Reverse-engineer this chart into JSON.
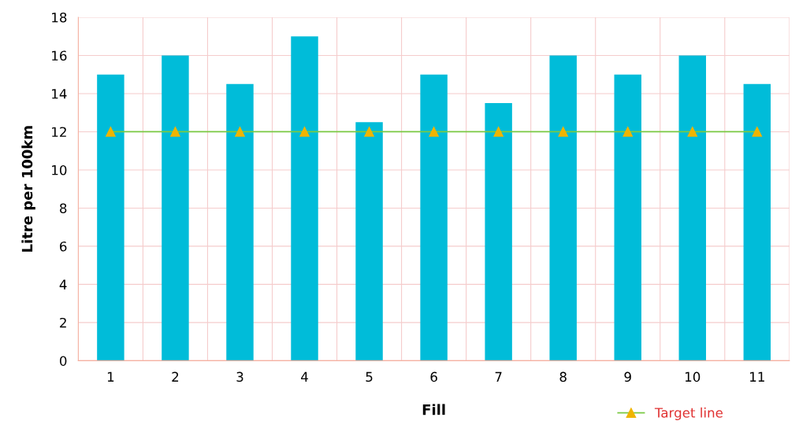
{
  "chart_data": {
    "type": "bar",
    "xlabel": "Fill",
    "ylabel": "Litre per 100km",
    "categories": [
      "1",
      "2",
      "3",
      "4",
      "5",
      "6",
      "7",
      "8",
      "9",
      "10",
      "11"
    ],
    "series": [
      {
        "color": "#00bcd9",
        "values": [
          15,
          16,
          14.5,
          17,
          12.5,
          15,
          13.5,
          16,
          15,
          16,
          14.5
        ]
      },
      {
        "type": "line",
        "name": "Target line",
        "color": "#7ac943",
        "marker": "triangle",
        "values": [
          12,
          12,
          12,
          12,
          12,
          12,
          12,
          12,
          12,
          12,
          12
        ]
      }
    ],
    "ylim": [
      0,
      18
    ],
    "yticks": [
      0,
      2,
      4,
      6,
      8,
      10,
      12,
      14,
      16,
      18
    ],
    "grid": true,
    "legend": "bottom right"
  }
}
